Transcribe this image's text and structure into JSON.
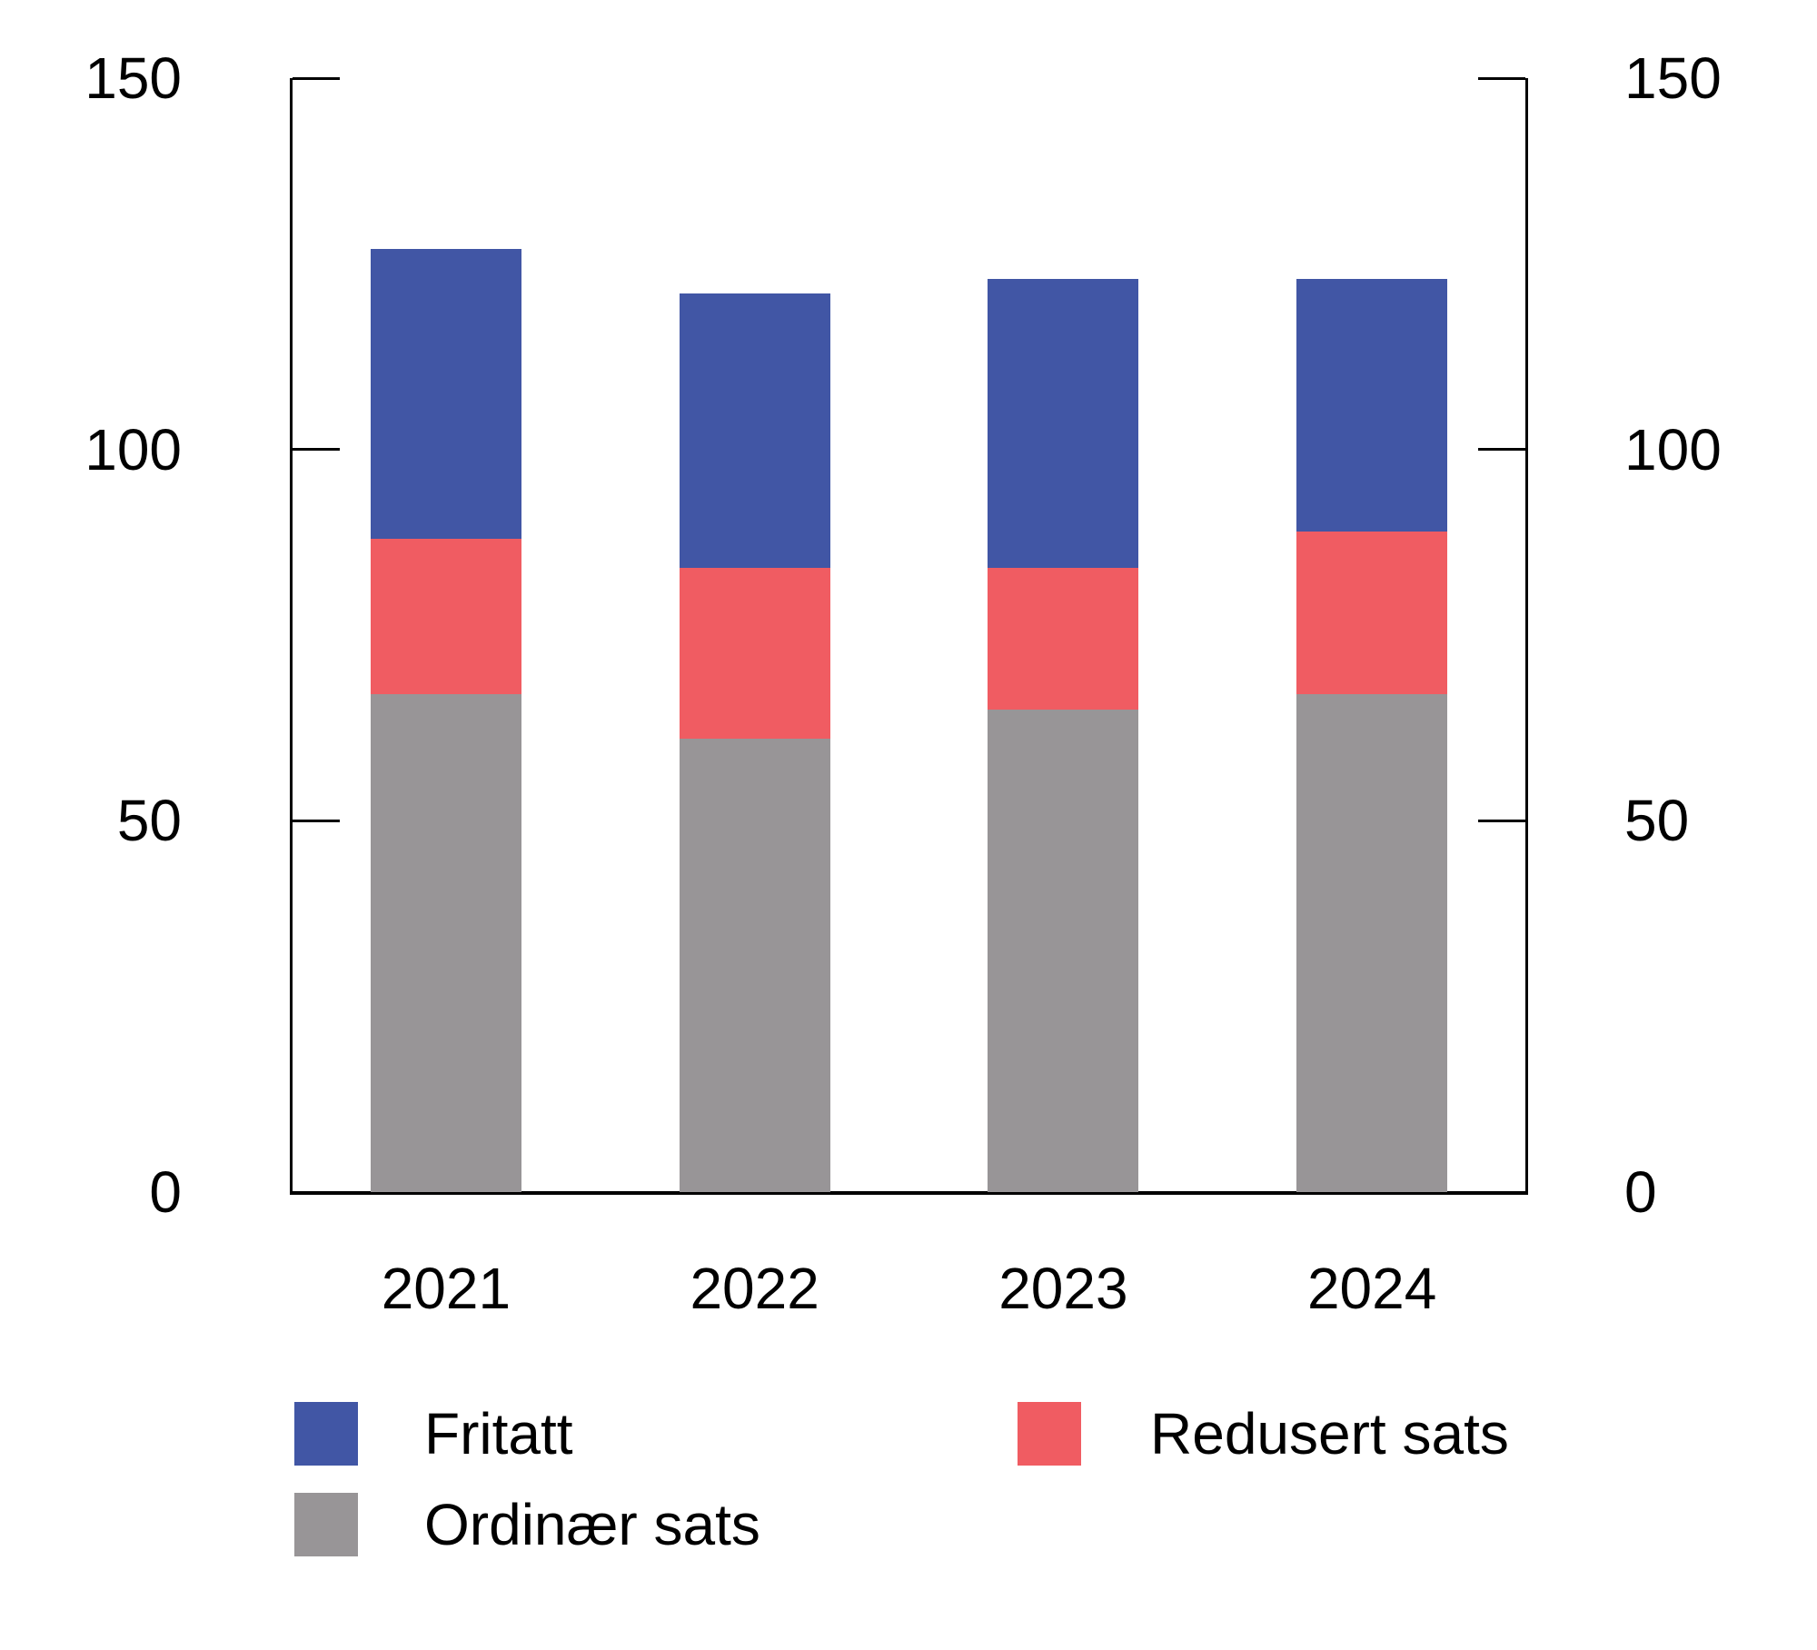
{
  "chart_data": {
    "type": "bar",
    "stacked": true,
    "categories": [
      "2021",
      "2022",
      "2023",
      "2024"
    ],
    "series": [
      {
        "name": "Ordinær sats",
        "color": "#989597",
        "values": [
          67,
          61,
          65,
          67
        ]
      },
      {
        "name": "Redusert sats",
        "color": "#F05C62",
        "values": [
          21,
          23,
          19,
          22
        ]
      },
      {
        "name": "Fritatt",
        "color": "#4156A5",
        "values": [
          39,
          37,
          39,
          34
        ]
      }
    ],
    "title": "",
    "xlabel": "",
    "ylabel": "",
    "ylim": [
      0,
      150
    ],
    "yticks": [
      0,
      50,
      100,
      150
    ],
    "grid": false,
    "axes": "left-and-right",
    "axis_color": "#000000",
    "legend_position": "bottom",
    "legend": {
      "items": [
        "Fritatt",
        "Redusert sats",
        "Ordinær sats"
      ]
    }
  }
}
